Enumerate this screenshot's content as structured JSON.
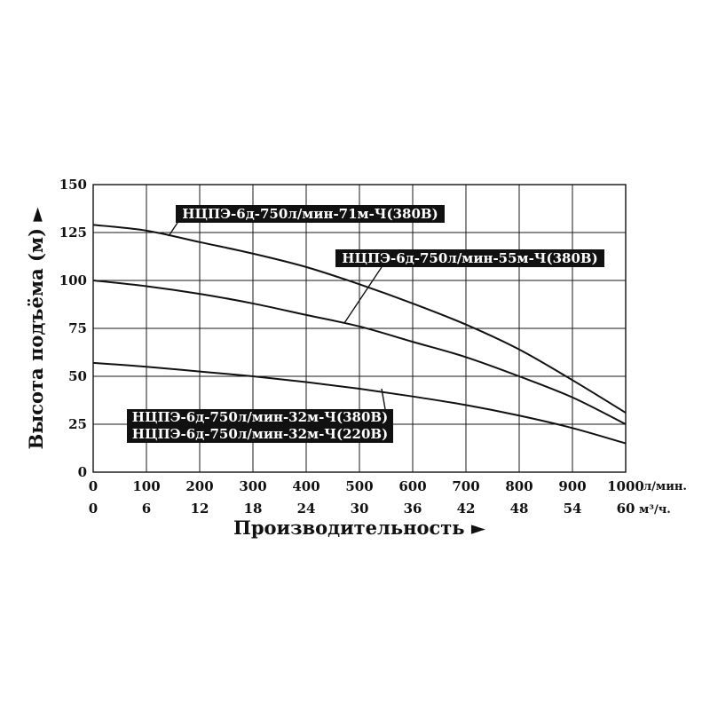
{
  "chart_data": {
    "type": "line",
    "xlabel": "Производительность ►",
    "ylabel": "Высота подъёма (м) ►",
    "x_unit": "л/мин.",
    "x2_unit": "м³/ч.",
    "xlim": [
      0,
      1000
    ],
    "ylim": [
      0,
      150
    ],
    "x_ticks": [
      "0",
      "100",
      "200",
      "300",
      "400",
      "500",
      "600",
      "700",
      "800",
      "900",
      "1000"
    ],
    "x2_ticks": [
      "0",
      "6",
      "12",
      "18",
      "24",
      "30",
      "36",
      "42",
      "48",
      "54",
      "60"
    ],
    "y_ticks": [
      "0",
      "25",
      "50",
      "75",
      "100",
      "125",
      "150"
    ],
    "grid": true,
    "series": [
      {
        "name": "НЦПЭ-6д-750л/мин-71м-Ч(380В)",
        "x": [
          0,
          100,
          200,
          300,
          400,
          500,
          600,
          700,
          800,
          900,
          1000
        ],
        "y": [
          129,
          126,
          120,
          114,
          107,
          98,
          88,
          77,
          64,
          48,
          31
        ]
      },
      {
        "name": "НЦПЭ-6д-750л/мин-55м-Ч(380В)",
        "x": [
          0,
          100,
          200,
          300,
          400,
          500,
          600,
          700,
          800,
          900,
          1000
        ],
        "y": [
          100,
          97,
          93,
          88,
          82,
          76,
          68,
          60,
          50,
          39,
          25
        ]
      },
      {
        "name": "НЦПЭ-6д-750л/мин-32м-Ч(380В)",
        "x": [
          0,
          100,
          200,
          300,
          400,
          500,
          600,
          700,
          800,
          900,
          1000
        ],
        "y": [
          57,
          55,
          52.5,
          50,
          47,
          43.5,
          39.5,
          35,
          29.5,
          23,
          15
        ]
      }
    ],
    "labels": [
      {
        "text": "НЦПЭ-6д-750л/мин-71м-Ч(380В)"
      },
      {
        "text": "НЦПЭ-6д-750л/мин-55м-Ч(380В)"
      },
      {
        "text": "НЦПЭ-6д-750л/мин-32м-Ч(380В)"
      },
      {
        "text": "НЦПЭ-6д-750л/мин-32м-Ч(220В)"
      }
    ]
  }
}
